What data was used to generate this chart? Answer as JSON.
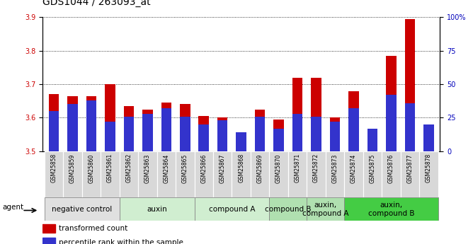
{
  "title": "GDS1044 / 263093_at",
  "samples": [
    "GSM25858",
    "GSM25859",
    "GSM25860",
    "GSM25861",
    "GSM25862",
    "GSM25863",
    "GSM25864",
    "GSM25865",
    "GSM25866",
    "GSM25867",
    "GSM25868",
    "GSM25869",
    "GSM25870",
    "GSM25871",
    "GSM25872",
    "GSM25873",
    "GSM25874",
    "GSM25875",
    "GSM25876",
    "GSM25877",
    "GSM25878"
  ],
  "red_values": [
    3.67,
    3.665,
    3.665,
    3.7,
    3.635,
    3.625,
    3.645,
    3.64,
    3.605,
    3.6,
    3.555,
    3.625,
    3.595,
    3.72,
    3.72,
    3.6,
    3.68,
    3.55,
    3.785,
    3.895,
    3.56
  ],
  "blue_pct": [
    30,
    35,
    38,
    22,
    26,
    28,
    32,
    26,
    20,
    23,
    14,
    26,
    17,
    28,
    26,
    22,
    32,
    17,
    42,
    36,
    20
  ],
  "ylim_left": [
    3.5,
    3.9
  ],
  "ylim_right": [
    0,
    100
  ],
  "yticks_left": [
    3.5,
    3.6,
    3.7,
    3.8,
    3.9
  ],
  "yticks_right": [
    0,
    25,
    50,
    75,
    100
  ],
  "ytick_labels_right": [
    "0",
    "25",
    "50",
    "75",
    "100%"
  ],
  "groups": [
    {
      "label": "negative control",
      "start": 0,
      "end": 3,
      "color": "#e0e0e0"
    },
    {
      "label": "auxin",
      "start": 4,
      "end": 7,
      "color": "#d0eed0"
    },
    {
      "label": "compound A",
      "start": 8,
      "end": 11,
      "color": "#d0eed0"
    },
    {
      "label": "compound B",
      "start": 12,
      "end": 13,
      "color": "#b0e0b0"
    },
    {
      "label": "auxin,\ncompound A",
      "start": 14,
      "end": 15,
      "color": "#b0e0b0"
    },
    {
      "label": "auxin,\ncompound B",
      "start": 16,
      "end": 20,
      "color": "#44cc44"
    }
  ],
  "bar_color_red": "#cc0000",
  "bar_color_blue": "#3333cc",
  "bar_width": 0.55,
  "base_value": 3.5,
  "legend_red": "transformed count",
  "legend_blue": "percentile rank within the sample",
  "agent_label": "agent",
  "ylabel_left_color": "#cc0000",
  "ylabel_right_color": "#0000bb",
  "title_fontsize": 10,
  "tick_fontsize": 7,
  "group_fontsize": 7.5,
  "cell_color": "#d8d8d8"
}
